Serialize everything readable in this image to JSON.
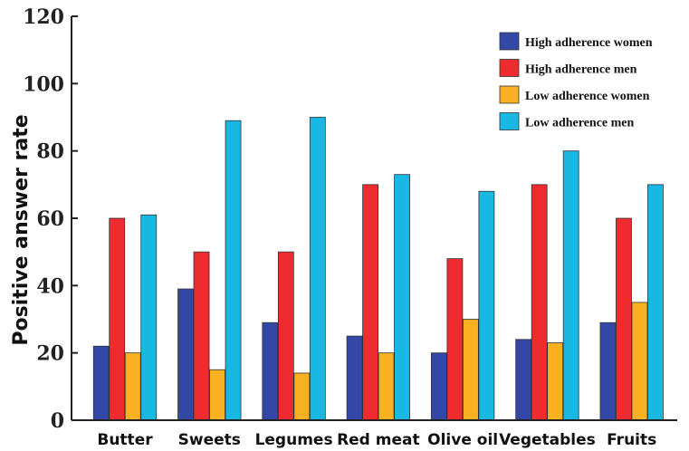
{
  "chart_data": {
    "type": "bar",
    "title": "",
    "xlabel": "",
    "ylabel": "Positive answer rate",
    "ylim": [
      0,
      120
    ],
    "yticks": [
      0,
      20,
      40,
      60,
      80,
      100,
      120
    ],
    "grid": false,
    "legend_position": "top-right",
    "categories": [
      "Butter",
      "Sweets",
      "Legumes",
      "Red meat",
      "Olive oil",
      "Vegetables",
      "Fruits"
    ],
    "series": [
      {
        "name": "High adherence women",
        "color": "#3347a6",
        "values": [
          22,
          39,
          29,
          25,
          20,
          24,
          29
        ]
      },
      {
        "name": "High adherence men",
        "color": "#ee2b2e",
        "values": [
          60,
          50,
          50,
          70,
          48,
          70,
          60
        ]
      },
      {
        "name": "Low adherence women",
        "color": "#f9b021",
        "values": [
          20,
          15,
          14,
          20,
          30,
          23,
          35
        ]
      },
      {
        "name": "Low adherence men",
        "color": "#18b8e3",
        "values": [
          61,
          89,
          90,
          73,
          68,
          80,
          70
        ]
      }
    ]
  }
}
